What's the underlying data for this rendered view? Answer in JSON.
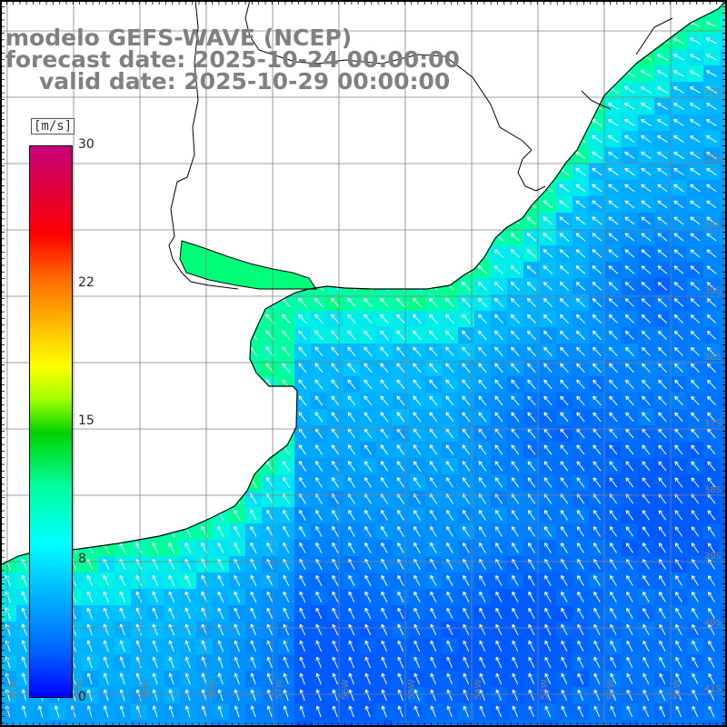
{
  "title": {
    "line1": "modelo GEFS-WAVE (NCEP)",
    "line2": "forecast date: 2025-10-24 00:00:00",
    "line3": "valid date: 2025-10-29 00:00:00"
  },
  "colorbar": {
    "unit": "[m/s]",
    "ticks": [
      "30",
      "22",
      "15",
      "8",
      "0"
    ],
    "min": 0,
    "max": 30
  },
  "lat_labels": [
    "32S",
    "33S",
    "34S",
    "35S",
    "36S",
    "37S",
    "38S",
    "39S",
    "40S",
    "41S"
  ],
  "lon_labels": [
    "61W",
    "60W",
    "59W",
    "58W",
    "57W",
    "56W",
    "55W",
    "54W",
    "53W",
    "52W",
    "51W"
  ],
  "colors": {
    "land": "#ffffff",
    "coast": "#000000",
    "grid": "#808080",
    "title": "#808080",
    "arrow": "#ffffff",
    "ocean_low": "#0078ff",
    "ocean_mid": "#00c8ff",
    "ocean_high": "#00ffc8",
    "nearshore": "#00ff78"
  },
  "wind": {
    "field_range_ms": [
      5,
      11
    ],
    "prevailing_direction": "from southeast (arrows pointing north-west)"
  }
}
